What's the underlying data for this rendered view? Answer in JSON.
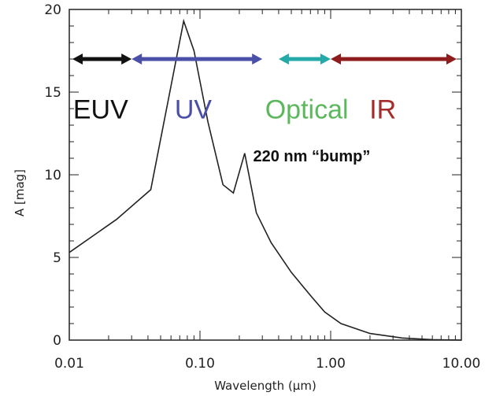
{
  "chart_data": {
    "type": "line",
    "xlabel": "Wavelength (μm)",
    "ylabel": "A [mag]",
    "xscale": "log",
    "xlim": [
      0.01,
      10.0
    ],
    "ylim": [
      0,
      20
    ],
    "xticks": [
      {
        "value": 0.01,
        "label": "0.01"
      },
      {
        "value": 0.1,
        "label": "0.10"
      },
      {
        "value": 1.0,
        "label": "1.00"
      },
      {
        "value": 10.0,
        "label": "10.00"
      }
    ],
    "yticks": [
      {
        "value": 0,
        "label": "0"
      },
      {
        "value": 5,
        "label": "5"
      },
      {
        "value": 10,
        "label": "10"
      },
      {
        "value": 15,
        "label": "15"
      },
      {
        "value": 20,
        "label": "20"
      }
    ],
    "grid": false,
    "series": [
      {
        "color": "#222222",
        "x": [
          0.01,
          0.023,
          0.042,
          0.075,
          0.09,
          0.115,
          0.15,
          0.18,
          0.22,
          0.27,
          0.35,
          0.5,
          0.7,
          0.9,
          1.2,
          2.0,
          3.5,
          6.0,
          10.0
        ],
        "y": [
          5.3,
          7.3,
          9.1,
          19.3,
          17.5,
          13.2,
          9.4,
          8.9,
          11.3,
          7.7,
          5.9,
          4.1,
          2.7,
          1.7,
          1.0,
          0.4,
          0.13,
          0.03,
          0.0
        ]
      }
    ],
    "bands": [
      {
        "label": "EUV",
        "color": "#111111",
        "x_start": 0.01,
        "x_end": 0.03,
        "arrow_y": 17.0,
        "label_x": 0.0107,
        "label_y": 13.4
      },
      {
        "label": "UV",
        "color": "#4a4fa8",
        "x_start": 0.03,
        "x_end": 0.3,
        "arrow_y": 17.0,
        "label_x": 0.064,
        "label_y": 13.4
      },
      {
        "label": "Optical",
        "color": "#25a9a9",
        "x_start": 0.4,
        "x_end": 1.0,
        "arrow_y": 17.0,
        "label_x": 0.315,
        "label_y": 13.4
      },
      {
        "label": "IR",
        "color": "#8f1c1c",
        "x_start": 1.0,
        "x_end": 10.0,
        "arrow_y": 17.0,
        "label_x": 1.98,
        "label_y": 13.4
      }
    ],
    "band_label_colors": {
      "EUV": "#111111",
      "UV": "#4a4fa8",
      "Optical": "#5cb85c",
      "IR": "#a52a2a"
    },
    "annotations": [
      {
        "text": "220 nm “bump”",
        "x": 0.255,
        "y": 10.8
      }
    ]
  }
}
